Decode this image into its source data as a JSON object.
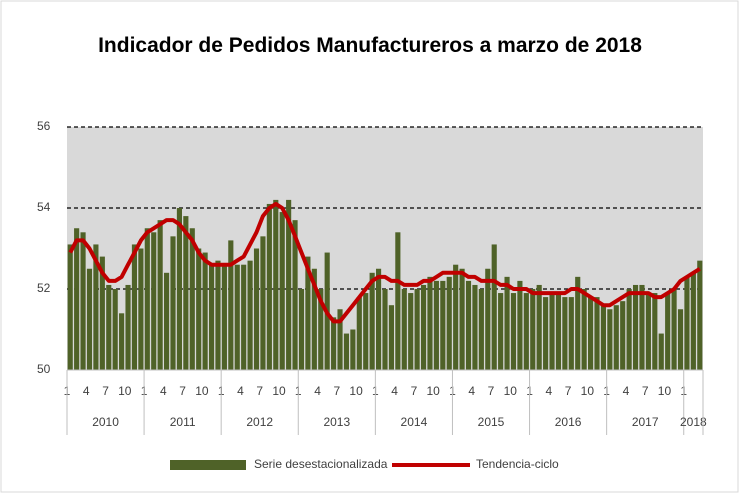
{
  "chart_data": {
    "type": "bar_line",
    "title": "Indicador de Pedidos Manufactureros a marzo de 2018",
    "categories": [
      "1",
      null,
      null,
      "4",
      null,
      null,
      "7",
      null,
      null,
      "10",
      null,
      null,
      "1",
      null,
      null,
      "4",
      null,
      null,
      "7",
      null,
      null,
      "10",
      null,
      null,
      "1",
      null,
      null,
      "4",
      null,
      null,
      "7",
      null,
      null,
      "10",
      null,
      null,
      "1",
      null,
      null,
      "4",
      null,
      null,
      "7",
      null,
      null,
      "10",
      null,
      null,
      "1",
      null,
      null,
      "4",
      null,
      null,
      "7",
      null,
      null,
      "10",
      null,
      null,
      "1",
      null,
      null,
      "4",
      null,
      null,
      "7",
      null,
      null,
      "10",
      null,
      null,
      "1",
      null,
      null,
      "4",
      null,
      null,
      "7",
      null,
      null,
      "10",
      null,
      null,
      "1",
      null,
      null,
      "4",
      null,
      null,
      "7",
      null,
      null,
      "10",
      null,
      null,
      "1",
      null,
      null
    ],
    "year_labels": [
      "2010",
      "2011",
      "2012",
      "2013",
      "2014",
      "2015",
      "2016",
      "2017",
      "2018"
    ],
    "series": [
      {
        "name": "Serie desestacionalizada",
        "kind": "bar",
        "color": "#4f6228",
        "values": [
          53.1,
          53.5,
          53.4,
          52.5,
          53.1,
          52.8,
          52.1,
          52.0,
          51.4,
          52.1,
          53.1,
          53.0,
          53.5,
          53.4,
          53.7,
          52.4,
          53.3,
          54.0,
          53.8,
          53.5,
          53.0,
          52.9,
          52.6,
          52.7,
          52.6,
          53.2,
          52.6,
          52.6,
          52.7,
          53.0,
          53.3,
          54.1,
          54.2,
          53.9,
          54.2,
          53.7,
          52.0,
          52.8,
          52.5,
          52.0,
          52.9,
          51.3,
          51.5,
          50.9,
          51.0,
          51.8,
          51.9,
          52.4,
          52.5,
          52.0,
          51.6,
          53.4,
          52.0,
          51.9,
          52.0,
          52.1,
          52.3,
          52.2,
          52.2,
          52.3,
          52.6,
          52.5,
          52.2,
          52.1,
          52.0,
          52.5,
          53.1,
          51.9,
          52.3,
          51.9,
          52.2,
          51.9,
          52.0,
          52.1,
          51.8,
          51.9,
          51.9,
          51.8,
          51.8,
          52.3,
          52.0,
          51.8,
          51.8,
          51.6,
          51.5,
          51.6,
          51.7,
          52.0,
          52.1,
          52.1,
          51.9,
          51.9,
          50.9,
          51.9,
          52.0,
          51.5,
          52.3,
          52.4,
          52.7
        ]
      },
      {
        "name": "Tendencia-ciclo",
        "kind": "line",
        "color": "#c00000",
        "values": [
          52.9,
          53.2,
          53.2,
          53.0,
          52.7,
          52.4,
          52.2,
          52.2,
          52.3,
          52.6,
          52.9,
          53.2,
          53.4,
          53.5,
          53.6,
          53.7,
          53.7,
          53.6,
          53.4,
          53.2,
          52.9,
          52.7,
          52.6,
          52.6,
          52.6,
          52.6,
          52.7,
          52.8,
          53.1,
          53.4,
          53.8,
          54.0,
          54.1,
          54.0,
          53.7,
          53.3,
          52.9,
          52.5,
          52.1,
          51.7,
          51.4,
          51.2,
          51.2,
          51.4,
          51.6,
          51.8,
          52.0,
          52.2,
          52.3,
          52.3,
          52.2,
          52.2,
          52.1,
          52.1,
          52.1,
          52.2,
          52.2,
          52.3,
          52.4,
          52.4,
          52.4,
          52.4,
          52.3,
          52.3,
          52.2,
          52.2,
          52.2,
          52.1,
          52.1,
          52.0,
          52.0,
          52.0,
          51.9,
          51.9,
          51.9,
          51.9,
          51.9,
          51.9,
          52.0,
          52.0,
          51.9,
          51.8,
          51.7,
          51.6,
          51.6,
          51.7,
          51.8,
          51.9,
          51.9,
          51.9,
          51.9,
          51.8,
          51.8,
          51.9,
          52.0,
          52.2,
          52.3,
          52.4,
          52.5
        ]
      }
    ],
    "ylim": [
      50,
      56
    ],
    "yticks": [
      50,
      52,
      54,
      56
    ],
    "grid": true,
    "legend": "bottom"
  }
}
